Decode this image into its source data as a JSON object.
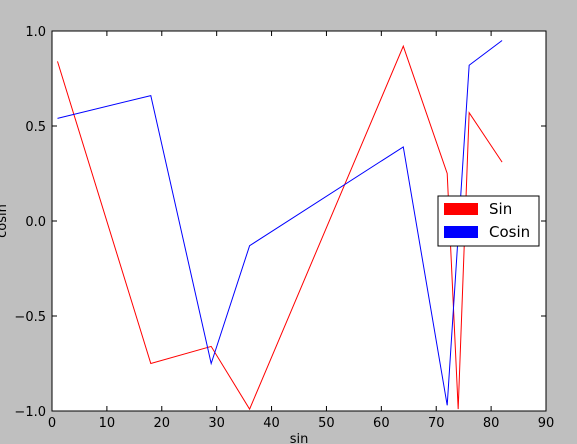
{
  "chart_data": {
    "type": "line",
    "xlabel": "sin",
    "ylabel": "cosin",
    "xlim": [
      0,
      90
    ],
    "ylim": [
      -1.0,
      1.0
    ],
    "x_ticks": [
      0,
      10,
      20,
      30,
      40,
      50,
      60,
      70,
      80,
      90
    ],
    "y_ticks": [
      -1.0,
      -0.5,
      0.0,
      0.5,
      1.0
    ],
    "x_tick_labels": [
      "0",
      "10",
      "20",
      "30",
      "40",
      "50",
      "60",
      "70",
      "80",
      "90"
    ],
    "y_tick_labels": [
      "−1.0",
      "−0.5",
      "0.0",
      "0.5",
      "1.0"
    ],
    "grid": false,
    "legend_position": "right",
    "series": [
      {
        "name": "Sin",
        "color": "#ff0000",
        "points": [
          [
            1,
            0.84
          ],
          [
            18,
            -0.75
          ],
          [
            29,
            -0.66
          ],
          [
            36,
            -0.99
          ],
          [
            64,
            0.92
          ],
          [
            72,
            0.25
          ],
          [
            74,
            -0.99
          ],
          [
            76,
            0.57
          ],
          [
            82,
            0.31
          ]
        ]
      },
      {
        "name": "Cosin",
        "color": "#0000ff",
        "points": [
          [
            1,
            0.54
          ],
          [
            18,
            0.66
          ],
          [
            29,
            -0.75
          ],
          [
            36,
            -0.13
          ],
          [
            64,
            0.39
          ],
          [
            72,
            -0.97
          ],
          [
            76,
            0.82
          ],
          [
            82,
            0.95
          ]
        ]
      }
    ]
  }
}
